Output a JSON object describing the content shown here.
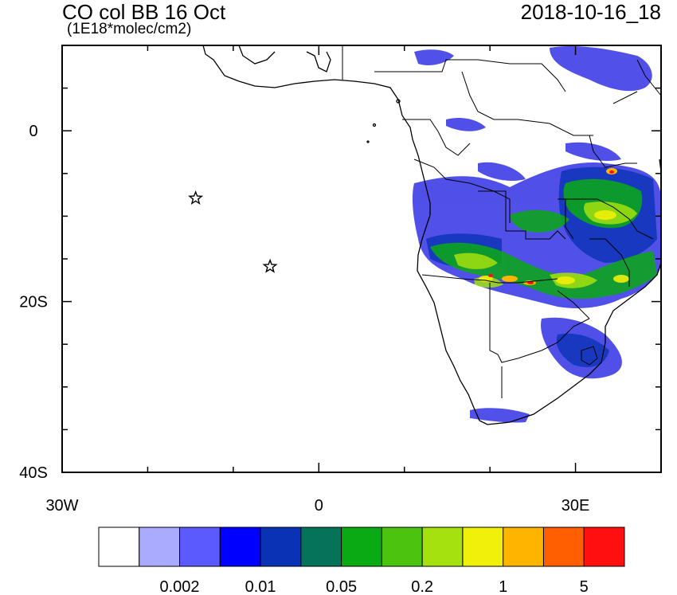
{
  "header": {
    "title": "CO col BB 16 Oct",
    "units": "(1E18*molec/cm2)",
    "datetime": "2018-10-16_18"
  },
  "map": {
    "lon_range": [
      -30,
      40
    ],
    "lat_range": [
      -40,
      10
    ],
    "x_ticks": [
      {
        "value": -30,
        "label": "30W"
      },
      {
        "value": 0,
        "label": "0"
      },
      {
        "value": 30,
        "label": "30E"
      }
    ],
    "y_ticks": [
      {
        "value": 0,
        "label": "0"
      },
      {
        "value": -20,
        "label": "20S"
      },
      {
        "value": -40,
        "label": "40S"
      }
    ],
    "markers": [
      {
        "name": "star-marker",
        "lon": -14.4,
        "lat": -7.9
      },
      {
        "name": "star-marker",
        "lon": -5.7,
        "lat": -15.9
      }
    ]
  },
  "colorbar": {
    "colors": [
      "#ffffff",
      "#aaaaff",
      "#5a5aff",
      "#0000ff",
      "#0a32b4",
      "#05735a",
      "#0aaa14",
      "#4bc30f",
      "#a5e10f",
      "#f0f00a",
      "#ffb400",
      "#ff5f00",
      "#ff0f0f"
    ],
    "labels": [
      {
        "after_box": 2,
        "text": "0.002"
      },
      {
        "after_box": 4,
        "text": "0.01"
      },
      {
        "after_box": 6,
        "text": "0.05"
      },
      {
        "after_box": 8,
        "text": "0.2"
      },
      {
        "after_box": 10,
        "text": "1"
      },
      {
        "after_box": 12,
        "text": "5"
      }
    ]
  }
}
